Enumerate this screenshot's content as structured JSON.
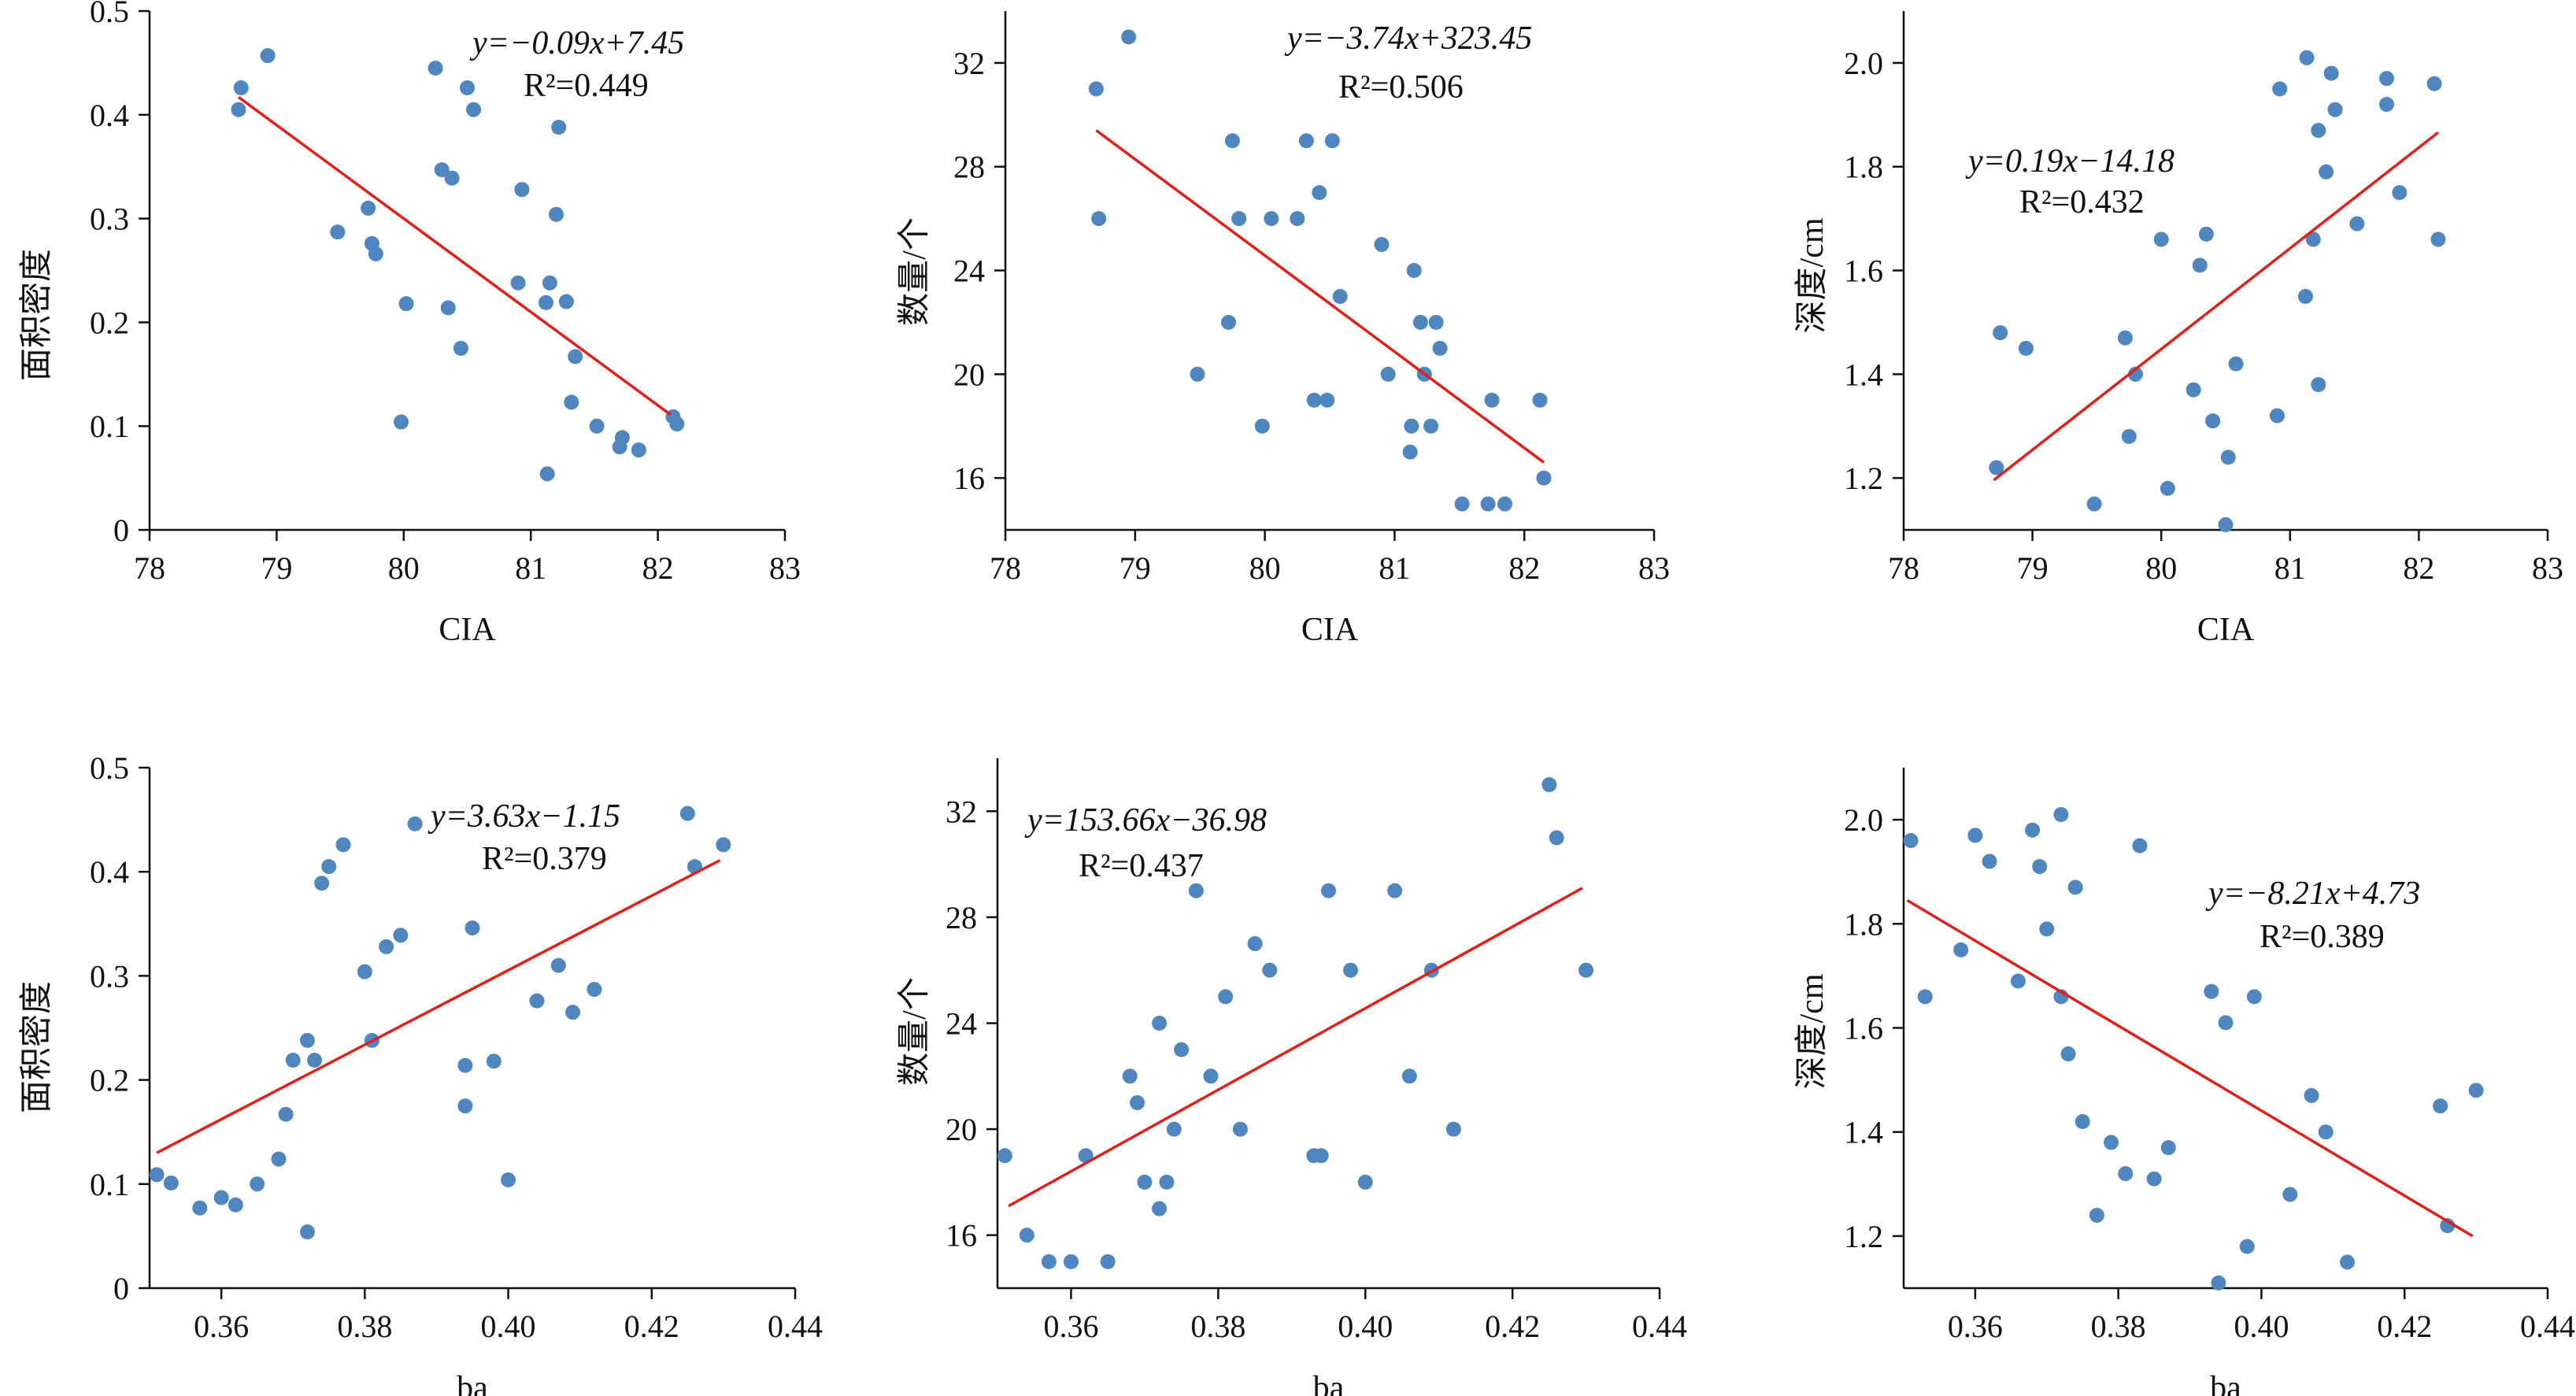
{
  "chart_data": [
    {
      "type": "scatter",
      "xlabel": "CIA",
      "ylabel": "面积密度",
      "xlim": [
        78,
        83
      ],
      "ylim": [
        0,
        0.5
      ],
      "xticks": [
        "78",
        "79",
        "80",
        "81",
        "82",
        "83"
      ],
      "yticks": [
        "0",
        "0.1",
        "0.2",
        "0.3",
        "0.4",
        "0.5"
      ],
      "equation": "y=−0.09x+7.45",
      "r2": "R²=0.449",
      "fit": {
        "x1": 78.7,
        "y1": 0.417,
        "x2": 82.1,
        "y2": 0.111
      },
      "points": [
        [
          78.7,
          0.405
        ],
        [
          78.72,
          0.426
        ],
        [
          78.93,
          0.457
        ],
        [
          79.48,
          0.287
        ],
        [
          79.72,
          0.31
        ],
        [
          79.75,
          0.276
        ],
        [
          79.78,
          0.266
        ],
        [
          79.98,
          0.104
        ],
        [
          80.02,
          0.218
        ],
        [
          80.25,
          0.445
        ],
        [
          80.3,
          0.347
        ],
        [
          80.35,
          0.214
        ],
        [
          80.38,
          0.339
        ],
        [
          80.45,
          0.175
        ],
        [
          80.5,
          0.426
        ],
        [
          80.55,
          0.405
        ],
        [
          80.9,
          0.238
        ],
        [
          80.93,
          0.328
        ],
        [
          81.12,
          0.219
        ],
        [
          81.13,
          0.054
        ],
        [
          81.15,
          0.238
        ],
        [
          81.2,
          0.304
        ],
        [
          81.22,
          0.388
        ],
        [
          81.28,
          0.22
        ],
        [
          81.32,
          0.123
        ],
        [
          81.35,
          0.167
        ],
        [
          81.52,
          0.1
        ],
        [
          81.7,
          0.08
        ],
        [
          81.72,
          0.089
        ],
        [
          81.85,
          0.077
        ],
        [
          82.12,
          0.109
        ],
        [
          82.15,
          0.102
        ]
      ]
    },
    {
      "type": "scatter",
      "xlabel": "CIA",
      "ylabel": "数量/个",
      "xlim": [
        78,
        83
      ],
      "ylim": [
        14,
        34
      ],
      "xticks": [
        "78",
        "79",
        "80",
        "81",
        "82",
        "83"
      ],
      "yticks": [
        "16",
        "20",
        "24",
        "28",
        "32"
      ],
      "ytick_values": [
        16,
        20,
        24,
        28,
        32
      ],
      "equation": "y=−3.74x+323.45",
      "r2": "R²=0.506",
      "fit": {
        "x1": 78.7,
        "y1": 29.4,
        "x2": 82.15,
        "y2": 16.6
      },
      "points": [
        [
          78.7,
          31
        ],
        [
          78.72,
          26
        ],
        [
          78.95,
          33
        ],
        [
          79.48,
          20
        ],
        [
          79.72,
          22
        ],
        [
          79.75,
          29
        ],
        [
          79.8,
          26
        ],
        [
          79.98,
          18
        ],
        [
          80.05,
          26
        ],
        [
          80.25,
          26
        ],
        [
          80.32,
          29
        ],
        [
          80.38,
          19
        ],
        [
          80.42,
          27
        ],
        [
          80.48,
          19
        ],
        [
          80.52,
          29
        ],
        [
          80.58,
          23
        ],
        [
          80.9,
          25
        ],
        [
          80.95,
          20
        ],
        [
          81.12,
          17
        ],
        [
          81.13,
          18
        ],
        [
          81.15,
          24
        ],
        [
          81.2,
          22
        ],
        [
          81.23,
          20
        ],
        [
          81.28,
          18
        ],
        [
          81.32,
          22
        ],
        [
          81.35,
          21
        ],
        [
          81.52,
          15
        ],
        [
          81.72,
          15
        ],
        [
          81.75,
          19
        ],
        [
          81.85,
          15
        ],
        [
          82.12,
          19
        ],
        [
          82.15,
          16
        ]
      ]
    },
    {
      "type": "scatter",
      "xlabel": "CIA",
      "ylabel": "深度/cm",
      "xlim": [
        78,
        83
      ],
      "ylim": [
        1.1,
        2.1
      ],
      "xticks": [
        "78",
        "79",
        "80",
        "81",
        "82",
        "83"
      ],
      "yticks": [
        "1.2",
        "1.4",
        "1.6",
        "1.8",
        "2.0"
      ],
      "ytick_values": [
        1.2,
        1.4,
        1.6,
        1.8,
        2.0
      ],
      "equation": "y=0.19x−14.18",
      "r2": "R²=0.432",
      "fit": {
        "x1": 78.7,
        "y1": 1.196,
        "x2": 82.15,
        "y2": 1.866
      },
      "points": [
        [
          78.72,
          1.22
        ],
        [
          78.75,
          1.48
        ],
        [
          78.95,
          1.45
        ],
        [
          79.48,
          1.15
        ],
        [
          79.72,
          1.47
        ],
        [
          79.75,
          1.28
        ],
        [
          79.8,
          1.4
        ],
        [
          80.0,
          1.66
        ],
        [
          80.05,
          1.18
        ],
        [
          80.25,
          1.37
        ],
        [
          80.3,
          1.61
        ],
        [
          80.35,
          1.67
        ],
        [
          80.4,
          1.31
        ],
        [
          80.5,
          1.11
        ],
        [
          80.52,
          1.24
        ],
        [
          80.58,
          1.42
        ],
        [
          80.9,
          1.32
        ],
        [
          80.92,
          1.95
        ],
        [
          81.12,
          1.55
        ],
        [
          81.13,
          2.01
        ],
        [
          81.18,
          1.66
        ],
        [
          81.22,
          1.38
        ],
        [
          81.22,
          1.87
        ],
        [
          81.28,
          1.79
        ],
        [
          81.32,
          1.98
        ],
        [
          81.35,
          1.91
        ],
        [
          81.52,
          1.69
        ],
        [
          81.75,
          1.92
        ],
        [
          81.75,
          1.97
        ],
        [
          81.85,
          1.75
        ],
        [
          82.12,
          1.96
        ],
        [
          82.15,
          1.66
        ]
      ]
    },
    {
      "type": "scatter",
      "xlabel": "ba",
      "ylabel": "面积密度",
      "xlim": [
        0.35,
        0.44
      ],
      "ylim": [
        0,
        0.5
      ],
      "xticks": [
        "0.36",
        "0.38",
        "0.40",
        "0.42",
        "0.44"
      ],
      "xtick_values": [
        0.36,
        0.38,
        0.4,
        0.42,
        0.44
      ],
      "yticks": [
        "0",
        "0.1",
        "0.2",
        "0.3",
        "0.4",
        "0.5"
      ],
      "equation": "y=3.63x−1.15",
      "r2": "R²=0.379",
      "fit": {
        "x1": 0.351,
        "y1": 0.13,
        "x2": 0.4295,
        "y2": 0.411
      },
      "points": [
        [
          0.351,
          0.109
        ],
        [
          0.353,
          0.101
        ],
        [
          0.357,
          0.077
        ],
        [
          0.36,
          0.087
        ],
        [
          0.362,
          0.08
        ],
        [
          0.365,
          0.1
        ],
        [
          0.368,
          0.124
        ],
        [
          0.369,
          0.167
        ],
        [
          0.37,
          0.219
        ],
        [
          0.372,
          0.054
        ],
        [
          0.372,
          0.238
        ],
        [
          0.373,
          0.219
        ],
        [
          0.374,
          0.389
        ],
        [
          0.375,
          0.405
        ],
        [
          0.377,
          0.426
        ],
        [
          0.38,
          0.304
        ],
        [
          0.381,
          0.238
        ],
        [
          0.383,
          0.328
        ],
        [
          0.385,
          0.339
        ],
        [
          0.387,
          0.446
        ],
        [
          0.394,
          0.175
        ],
        [
          0.394,
          0.214
        ],
        [
          0.395,
          0.346
        ],
        [
          0.398,
          0.218
        ],
        [
          0.4,
          0.104
        ],
        [
          0.404,
          0.276
        ],
        [
          0.407,
          0.31
        ],
        [
          0.409,
          0.265
        ],
        [
          0.412,
          0.287
        ],
        [
          0.425,
          0.456
        ],
        [
          0.426,
          0.405
        ],
        [
          0.43,
          0.426
        ]
      ]
    },
    {
      "type": "scatter",
      "xlabel": "ba",
      "ylabel": "数量/个",
      "xlim": [
        0.35,
        0.44
      ],
      "ylim": [
        14,
        34
      ],
      "xticks": [
        "0.36",
        "0.38",
        "0.40",
        "0.42",
        "0.44"
      ],
      "xtick_values": [
        0.36,
        0.38,
        0.4,
        0.42,
        0.44
      ],
      "yticks": [
        "16",
        "20",
        "24",
        "28",
        "32"
      ],
      "ytick_values": [
        16,
        20,
        24,
        28,
        32
      ],
      "equation": "y=153.66x−36.98",
      "r2": "R²=0.437",
      "fit": {
        "x1": 0.3515,
        "y1": 17.1,
        "x2": 0.4295,
        "y2": 29.1
      },
      "points": [
        [
          0.351,
          19
        ],
        [
          0.354,
          16
        ],
        [
          0.357,
          15
        ],
        [
          0.36,
          15
        ],
        [
          0.362,
          19
        ],
        [
          0.365,
          15
        ],
        [
          0.368,
          22
        ],
        [
          0.369,
          21
        ],
        [
          0.37,
          18
        ],
        [
          0.372,
          17
        ],
        [
          0.372,
          24
        ],
        [
          0.373,
          18
        ],
        [
          0.374,
          20
        ],
        [
          0.375,
          23
        ],
        [
          0.377,
          29
        ],
        [
          0.379,
          22
        ],
        [
          0.381,
          25
        ],
        [
          0.383,
          20
        ],
        [
          0.385,
          27
        ],
        [
          0.387,
          26
        ],
        [
          0.393,
          19
        ],
        [
          0.394,
          19
        ],
        [
          0.395,
          29
        ],
        [
          0.398,
          26
        ],
        [
          0.4,
          18
        ],
        [
          0.404,
          29
        ],
        [
          0.406,
          22
        ],
        [
          0.409,
          26
        ],
        [
          0.412,
          20
        ],
        [
          0.425,
          33
        ],
        [
          0.426,
          31
        ],
        [
          0.43,
          26
        ]
      ]
    },
    {
      "type": "scatter",
      "xlabel": "ba",
      "ylabel": "深度/cm",
      "xlim": [
        0.35,
        0.44
      ],
      "ylim": [
        1.1,
        2.1
      ],
      "xticks": [
        "0.36",
        "0.38",
        "0.40",
        "0.42",
        "0.44"
      ],
      "xtick_values": [
        0.36,
        0.38,
        0.4,
        0.42,
        0.44
      ],
      "yticks": [
        "1.2",
        "1.4",
        "1.6",
        "1.8",
        "2.0"
      ],
      "ytick_values": [
        1.2,
        1.4,
        1.6,
        1.8,
        2.0
      ],
      "equation": "y=−8.21x+4.73",
      "r2": "R²=0.389",
      "fit": {
        "x1": 0.3505,
        "y1": 1.845,
        "x2": 0.4295,
        "y2": 1.2
      },
      "points": [
        [
          0.351,
          1.96
        ],
        [
          0.353,
          1.66
        ],
        [
          0.358,
          1.75
        ],
        [
          0.36,
          1.97
        ],
        [
          0.362,
          1.92
        ],
        [
          0.366,
          1.69
        ],
        [
          0.368,
          1.98
        ],
        [
          0.369,
          1.91
        ],
        [
          0.37,
          1.79
        ],
        [
          0.372,
          2.01
        ],
        [
          0.372,
          1.66
        ],
        [
          0.373,
          1.55
        ],
        [
          0.374,
          1.87
        ],
        [
          0.375,
          1.42
        ],
        [
          0.377,
          1.24
        ],
        [
          0.379,
          1.38
        ],
        [
          0.381,
          1.32
        ],
        [
          0.383,
          1.95
        ],
        [
          0.385,
          1.31
        ],
        [
          0.387,
          1.37
        ],
        [
          0.393,
          1.67
        ],
        [
          0.394,
          1.11
        ],
        [
          0.395,
          1.61
        ],
        [
          0.398,
          1.18
        ],
        [
          0.399,
          1.66
        ],
        [
          0.404,
          1.28
        ],
        [
          0.407,
          1.47
        ],
        [
          0.409,
          1.4
        ],
        [
          0.412,
          1.15
        ],
        [
          0.425,
          1.45
        ],
        [
          0.426,
          1.22
        ],
        [
          0.43,
          1.48
        ]
      ]
    }
  ]
}
